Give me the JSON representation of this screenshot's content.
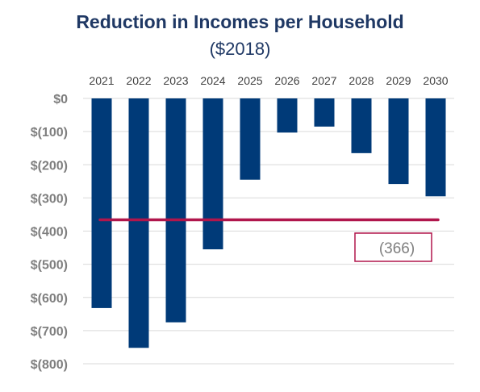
{
  "chart_data": {
    "type": "bar",
    "title": "Reduction in Incomes per Household",
    "subtitle": "($2018)",
    "categories": [
      "2021",
      "2022",
      "2023",
      "2024",
      "2025",
      "2026",
      "2027",
      "2028",
      "2029",
      "2030"
    ],
    "values": [
      -632,
      -752,
      -675,
      -455,
      -245,
      -103,
      -85,
      -165,
      -258,
      -295
    ],
    "ylim": [
      -800,
      0
    ],
    "yticks": [
      0,
      -100,
      -200,
      -300,
      -400,
      -500,
      -600,
      -700,
      -800
    ],
    "ytick_labels": [
      "$0",
      "$(100)",
      "$(200)",
      "$(300)",
      "$(400)",
      "$(500)",
      "$(600)",
      "$(700)",
      "$(800)"
    ],
    "x_axis_position": "top",
    "grid": true,
    "reference_line": {
      "value": -366,
      "label": "(366)",
      "color": "#b0164c"
    },
    "colors": {
      "bar": "#003a78",
      "title": "#1f3864",
      "grid": "#d9d9d9"
    }
  }
}
